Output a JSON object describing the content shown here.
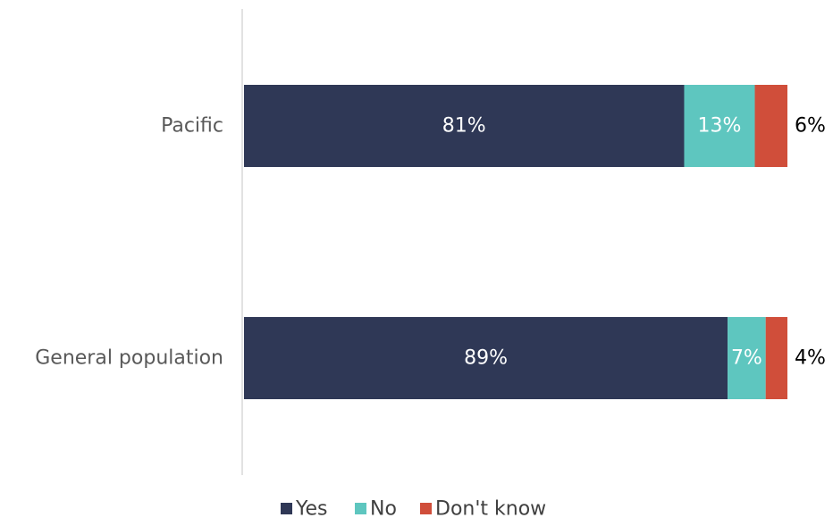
{
  "chart_data": {
    "type": "bar",
    "orientation": "horizontal",
    "stacked": true,
    "categories": [
      "Pacific",
      "General population"
    ],
    "series": [
      {
        "name": "Yes",
        "values": [
          81,
          89
        ],
        "labels": [
          "81%",
          "89%"
        ],
        "color": "#2f3856"
      },
      {
        "name": "No",
        "values": [
          13,
          7
        ],
        "labels": [
          "13%",
          "7%"
        ],
        "color": "#5ec6bf"
      },
      {
        "name": "Don't know",
        "values": [
          6,
          4
        ],
        "labels": [
          "6%",
          "4%"
        ],
        "color": "#d04e3a"
      }
    ],
    "xlim": [
      0,
      100
    ],
    "grid": false,
    "legend": "bottom"
  }
}
